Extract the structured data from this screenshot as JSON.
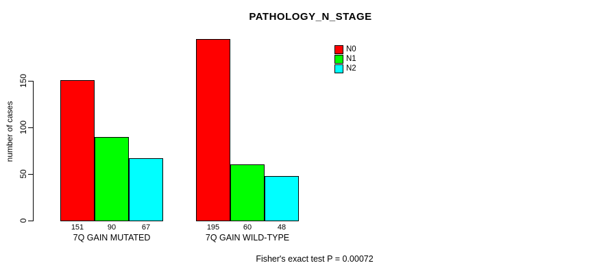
{
  "title": "PATHOLOGY_N_STAGE",
  "footer": "Fisher's exact test P = 0.00072",
  "axis": {
    "ylabel": "number of cases",
    "yticks": [
      0,
      50,
      100,
      150
    ]
  },
  "legend": {
    "items": [
      {
        "label": "N0",
        "color": "#FF0000"
      },
      {
        "label": "N1",
        "color": "#00FF00"
      },
      {
        "label": "N2",
        "color": "#00FFFF"
      }
    ]
  },
  "chart_data": {
    "type": "bar",
    "categories": [
      "7Q GAIN MUTATED",
      "7Q GAIN WILD-TYPE"
    ],
    "series": [
      {
        "name": "N0",
        "color": "#FF0000",
        "values": [
          151,
          195
        ]
      },
      {
        "name": "N1",
        "color": "#00FF00",
        "values": [
          90,
          60
        ]
      },
      {
        "name": "N2",
        "color": "#00FFFF",
        "values": [
          67,
          48
        ]
      }
    ],
    "title": "PATHOLOGY_N_STAGE",
    "xlabel": "",
    "ylabel": "number of cases",
    "ylim": [
      0,
      150
    ],
    "yticks": [
      0,
      50,
      100,
      150
    ],
    "bar_value_labels": true,
    "grid": false,
    "legend_position": "top-right",
    "annotation": "Fisher's exact test P = 0.00072"
  }
}
